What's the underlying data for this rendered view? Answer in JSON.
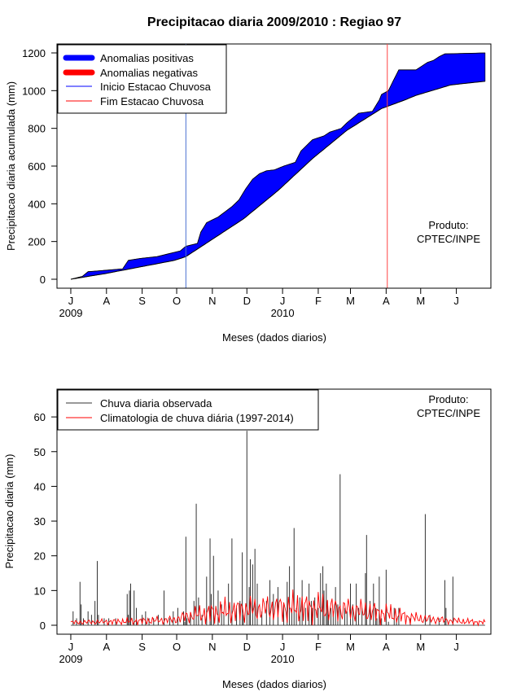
{
  "chart_data": [
    {
      "type": "area",
      "title": "Precipitacao diaria 2009/2010 : Regiao 97",
      "xlabel": "Meses (dados diarios)",
      "ylabel": "Precipitacao diaria acumulada (mm)",
      "ylim": [
        0,
        1200
      ],
      "yticks": [
        0,
        200,
        400,
        600,
        800,
        1000,
        1200
      ],
      "xlim_days": [
        -12,
        365
      ],
      "months": [
        "J",
        "A",
        "S",
        "O",
        "N",
        "D",
        "J",
        "F",
        "M",
        "A",
        "M",
        "J"
      ],
      "month_days": [
        0,
        31,
        62,
        92,
        123,
        153,
        184,
        215,
        243,
        274,
        304,
        335
      ],
      "years": [
        {
          "label": "2009",
          "day": 0
        },
        {
          "label": "2010",
          "day": 184
        }
      ],
      "climatology_cumulative": {
        "days": [
          0,
          30,
          60,
          90,
          100,
          120,
          150,
          180,
          210,
          240,
          270,
          290,
          300,
          330,
          360
        ],
        "values": [
          0,
          30,
          65,
          100,
          120,
          200,
          320,
          470,
          640,
          790,
          905,
          950,
          975,
          1030,
          1050
        ]
      },
      "observed_cumulative": {
        "days": [
          0,
          10,
          15,
          25,
          35,
          45,
          50,
          60,
          75,
          85,
          95,
          100,
          110,
          113,
          118,
          128,
          140,
          146,
          152,
          158,
          164,
          170,
          177,
          185,
          195,
          200,
          210,
          220,
          225,
          235,
          240,
          250,
          262,
          268,
          270,
          276,
          280,
          285,
          300,
          305,
          310,
          315,
          320,
          325,
          360
        ],
        "values": [
          0,
          15,
          40,
          45,
          50,
          55,
          100,
          110,
          120,
          135,
          150,
          175,
          190,
          250,
          300,
          330,
          385,
          420,
          480,
          530,
          560,
          575,
          580,
          600,
          620,
          680,
          740,
          760,
          780,
          800,
          830,
          880,
          890,
          950,
          980,
          1000,
          1050,
          1110,
          1110,
          1130,
          1150,
          1160,
          1180,
          1195,
          1200
        ]
      },
      "season_start_day": 100,
      "season_end_day": 275,
      "legend": [
        {
          "label": "Anomalias positivas",
          "color": "#0000ff",
          "style": "thick"
        },
        {
          "label": "Anomalias negativas",
          "color": "#ff0000",
          "style": "thick"
        },
        {
          "label": "Inicio Estacao Chuvosa",
          "color": "#0000ff",
          "style": "thin"
        },
        {
          "label": "Fim Estacao Chuvosa",
          "color": "#ff0000",
          "style": "thin"
        }
      ],
      "annotation": [
        "Produto:",
        "CPTEC/INPE"
      ],
      "colors": {
        "positive": "#0000ff",
        "negative": "#ff0000",
        "start": "#4a6fd0",
        "end": "#ff4444"
      }
    },
    {
      "type": "bar",
      "xlabel": "Meses (dados diarios)",
      "ylabel": "Precipitacao diaria (mm)",
      "ylim": [
        0,
        68
      ],
      "yticks": [
        0,
        10,
        20,
        30,
        40,
        50,
        60
      ],
      "xlim_days": [
        -12,
        365
      ],
      "months": [
        "J",
        "A",
        "S",
        "O",
        "N",
        "D",
        "J",
        "F",
        "M",
        "A",
        "M",
        "J"
      ],
      "month_days": [
        0,
        31,
        62,
        92,
        123,
        153,
        184,
        215,
        243,
        274,
        304,
        335
      ],
      "years": [
        {
          "label": "2009",
          "day": 0
        },
        {
          "label": "2010",
          "day": 184
        }
      ],
      "observed_daily": {
        "days": [
          2,
          5,
          8,
          9,
          11,
          15,
          18,
          21,
          23,
          24,
          29,
          33,
          39,
          49,
          50,
          51,
          52,
          55,
          57,
          62,
          65,
          68,
          72,
          76,
          81,
          86,
          89,
          93,
          98,
          99,
          100,
          101,
          104,
          107,
          109,
          111,
          114,
          118,
          121,
          122,
          124,
          128,
          131,
          133,
          137,
          140,
          144,
          147,
          149,
          150,
          153,
          155,
          156,
          158,
          160,
          162,
          166,
          170,
          173,
          176,
          180,
          185,
          188,
          190,
          192,
          194,
          196,
          199,
          201,
          204,
          207,
          209,
          210,
          212,
          215,
          217,
          219,
          220,
          222,
          223,
          224,
          226,
          228,
          230,
          232,
          234,
          238,
          240,
          243,
          245,
          248,
          250,
          253,
          256,
          257,
          260,
          263,
          265,
          266,
          268,
          270,
          274,
          276,
          281,
          283,
          285,
          295,
          308,
          312,
          320,
          325,
          326,
          332
        ],
        "values": [
          4,
          2,
          12.5,
          6,
          2,
          4,
          3,
          7,
          18.5,
          3,
          2,
          2,
          2,
          9,
          3,
          10,
          12,
          10,
          5,
          3,
          4,
          2,
          2,
          3,
          10,
          2,
          4,
          5,
          4,
          1,
          25.5,
          2,
          3,
          7,
          35,
          8,
          3,
          14,
          25,
          9,
          20,
          10,
          6,
          4,
          12,
          25,
          5,
          7,
          21,
          3,
          56,
          11,
          19,
          17.5,
          22,
          12,
          4,
          7,
          13,
          9,
          11,
          6,
          12.5,
          17,
          5,
          28,
          5,
          8,
          13,
          5,
          12,
          7,
          5,
          8,
          5,
          15,
          17,
          10,
          12,
          7,
          3,
          5,
          4,
          11,
          6,
          43.5,
          5,
          4,
          12,
          6,
          12,
          5,
          5,
          15,
          26,
          7,
          12,
          5,
          2,
          14,
          2,
          16,
          1,
          5,
          2,
          5,
          2,
          32,
          3,
          2,
          13,
          5,
          14
        ]
      },
      "climatology_daily": {
        "days": [
          0,
          30,
          60,
          90,
          100,
          120,
          150,
          180,
          210,
          240,
          270,
          300,
          330,
          360
        ],
        "values": [
          0.8,
          1,
          1.2,
          1.6,
          2.5,
          3.5,
          4.5,
          5,
          5,
          4.5,
          3.5,
          2,
          1.3,
          0.8
        ]
      },
      "legend": [
        {
          "label": "Chuva diaria observada",
          "color": "#333333",
          "style": "thin"
        },
        {
          "label": "Climatologia de chuva diária (1997-2014)",
          "color": "#ff0000",
          "style": "thin"
        }
      ],
      "annotation": [
        "Produto:",
        "CPTEC/INPE"
      ],
      "colors": {
        "observed": "#333333",
        "climatology": "#ff0000"
      }
    }
  ]
}
